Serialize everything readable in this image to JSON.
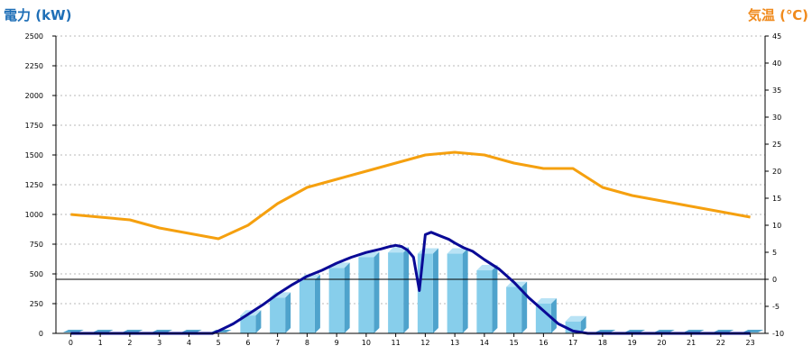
{
  "chart_data": {
    "type": "bar",
    "title": "",
    "xlabel": "",
    "ylabel": "電力 (kW)",
    "y2label": "気温 (℃)",
    "categories": [
      "0",
      "1",
      "2",
      "3",
      "4",
      "5",
      "6",
      "7",
      "8",
      "9",
      "10",
      "11",
      "12",
      "13",
      "14",
      "15",
      "16",
      "17",
      "18",
      "19",
      "20",
      "21",
      "22",
      "23"
    ],
    "ylim": [
      0,
      2500
    ],
    "y_ticks": [
      0,
      250,
      500,
      750,
      1000,
      1250,
      1500,
      1750,
      2000,
      2250,
      2500
    ],
    "y2lim": [
      -10,
      45
    ],
    "y2_ticks": [
      -10,
      -5,
      0,
      5,
      10,
      15,
      20,
      25,
      30,
      35,
      40,
      45
    ],
    "grid": true,
    "bar_series": {
      "values": [
        0,
        0,
        0,
        0,
        0,
        0,
        150,
        300,
        450,
        550,
        640,
        680,
        670,
        670,
        530,
        390,
        250,
        100,
        0,
        0,
        0,
        0,
        0,
        0
      ],
      "color": "#87ceeb",
      "side_color": "#4fa3cc"
    },
    "line_series": [
      {
        "axis": "left",
        "color": "#0a0a96",
        "x": [
          0,
          1,
          2,
          3,
          4,
          4.8,
          5,
          5.5,
          6,
          6.5,
          7,
          7.5,
          8,
          8.5,
          9,
          9.5,
          10,
          10.5,
          10.8,
          11,
          11.2,
          11.4,
          11.6,
          11.8,
          12,
          12.2,
          12.5,
          12.8,
          13,
          13.3,
          13.6,
          14,
          14.5,
          15,
          15.5,
          16,
          16.5,
          17,
          17.5,
          18,
          19,
          20,
          21,
          22,
          23
        ],
        "values": [
          0,
          0,
          0,
          0,
          0,
          0,
          20,
          80,
          160,
          240,
          330,
          410,
          480,
          530,
          590,
          640,
          680,
          710,
          730,
          740,
          730,
          700,
          640,
          360,
          830,
          850,
          820,
          790,
          760,
          720,
          690,
          620,
          540,
          430,
          300,
          190,
          80,
          20,
          0,
          0,
          0,
          0,
          0,
          0,
          0
        ]
      },
      {
        "axis": "right",
        "color": "#f5a00f",
        "x": [
          0,
          1,
          2,
          3,
          4,
          5,
          6,
          7,
          8,
          9,
          10,
          11,
          12,
          13,
          14,
          15,
          16,
          17,
          18,
          19,
          20,
          21,
          22,
          23
        ],
        "values": [
          12,
          11.5,
          11,
          9.5,
          8.5,
          7.5,
          10,
          14,
          17,
          18.5,
          20,
          21.5,
          23,
          23.5,
          23,
          21.5,
          20.5,
          20.5,
          17,
          15.5,
          14.5,
          13.5,
          12.5,
          11.5
        ]
      }
    ],
    "reference_line": {
      "axis": "right",
      "value": 0,
      "color": "#000000"
    }
  }
}
